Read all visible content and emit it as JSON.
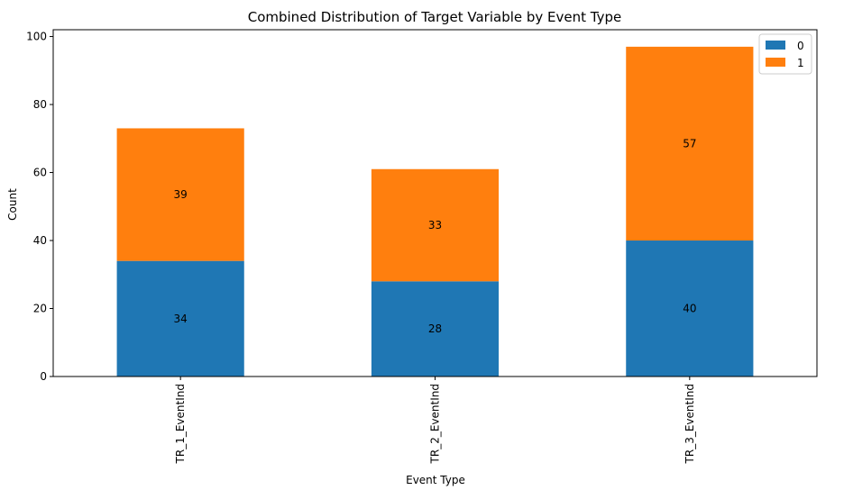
{
  "chart_data": {
    "type": "bar",
    "stacked": true,
    "title": "Combined Distribution of Target Variable by Event Type",
    "xlabel": "Event Type",
    "ylabel": "Count",
    "categories": [
      "TR_1_EventInd",
      "TR_2_EventInd",
      "TR_3_EventInd"
    ],
    "series": [
      {
        "name": "0",
        "values": [
          34,
          28,
          40
        ],
        "color": "#1f77b4"
      },
      {
        "name": "1",
        "values": [
          39,
          33,
          57
        ],
        "color": "#ff7f0e"
      }
    ],
    "ylim": [
      0,
      102
    ],
    "yticks": [
      0,
      20,
      40,
      60,
      80,
      100
    ],
    "grid": false,
    "legend_position": "top-right",
    "data_labels": true
  }
}
